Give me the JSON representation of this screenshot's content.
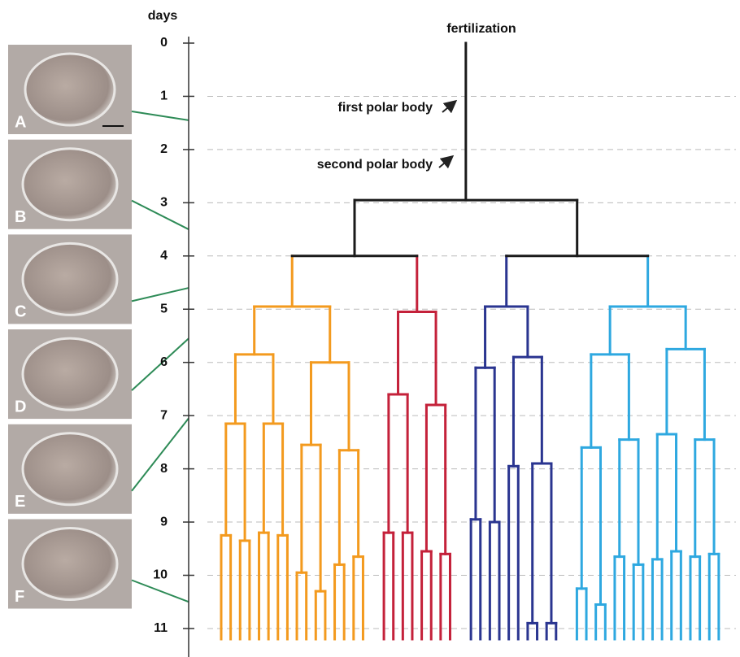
{
  "axis": {
    "label": "days",
    "ticks": [
      0,
      1,
      2,
      3,
      4,
      5,
      6,
      7,
      8,
      9,
      10,
      11
    ],
    "range": [
      0,
      11.5
    ]
  },
  "annotations": {
    "fertilization": "fertilization",
    "first_polar_body": "first polar body",
    "second_polar_body": "second polar body"
  },
  "photos": [
    {
      "label": "A",
      "stage_day": 1.45
    },
    {
      "label": "B",
      "stage_day": 3.5
    },
    {
      "label": "C",
      "stage_day": 4.6
    },
    {
      "label": "D",
      "stage_day": 5.55
    },
    {
      "label": "E",
      "stage_day": 7.05
    },
    {
      "label": "F",
      "stage_day": 10.5
    }
  ],
  "lineage": {
    "fertilization_day": 0,
    "observed_until": 11.2,
    "root": {
      "t": 2.95,
      "color": "#1a1a1a",
      "children": [
        {
          "t": 4,
          "color": "#1a1a1a",
          "children": [
            {
              "t": 4.95,
              "color": "#f39a1e",
              "children": [
                {
                  "t": 5.85,
                  "children": [
                    {
                      "t": 7.15,
                      "children": [
                        {
                          "t": 9.25
                        },
                        {
                          "t": 9.35
                        }
                      ]
                    },
                    {
                      "t": 7.15,
                      "children": [
                        {
                          "t": 9.2
                        },
                        {
                          "t": 9.25
                        }
                      ]
                    }
                  ]
                },
                {
                  "t": 6.0,
                  "children": [
                    {
                      "t": 7.55,
                      "children": [
                        {
                          "t": 9.95
                        },
                        {
                          "t": 10.3
                        }
                      ]
                    },
                    {
                      "t": 7.65,
                      "children": [
                        {
                          "t": 9.8
                        },
                        {
                          "t": 9.65
                        }
                      ]
                    }
                  ]
                }
              ]
            },
            {
              "t": 5.05,
              "color": "#c4213a",
              "children": [
                {
                  "t": 6.6,
                  "children": [
                    {
                      "t": 9.2
                    },
                    {
                      "t": 9.2
                    }
                  ]
                },
                {
                  "t": 6.8,
                  "children": [
                    {
                      "t": 9.55
                    },
                    {
                      "t": 9.6
                    }
                  ]
                }
              ]
            }
          ]
        },
        {
          "t": 4,
          "color": "#1a1a1a",
          "children": [
            {
              "t": 4.95,
              "color": "#2a3590",
              "children": [
                {
                  "t": 6.1,
                  "children": [
                    {
                      "t": 8.95
                    },
                    {
                      "t": 9.0
                    }
                  ]
                },
                {
                  "t": 5.9,
                  "children": [
                    {
                      "t": 7.95
                    },
                    {
                      "t": 7.9,
                      "children": [
                        {
                          "t": 10.9
                        },
                        {
                          "t": 10.9
                        }
                      ]
                    }
                  ]
                }
              ]
            },
            {
              "t": 4.95,
              "color": "#2ea8e0",
              "children": [
                {
                  "t": 5.85,
                  "children": [
                    {
                      "t": 7.6,
                      "children": [
                        {
                          "t": 10.25
                        },
                        {
                          "t": 10.55
                        }
                      ]
                    },
                    {
                      "t": 7.45,
                      "children": [
                        {
                          "t": 9.65
                        },
                        {
                          "t": 9.8
                        }
                      ]
                    }
                  ]
                },
                {
                  "t": 5.75,
                  "children": [
                    {
                      "t": 7.35,
                      "children": [
                        {
                          "t": 9.7
                        },
                        {
                          "t": 9.55
                        }
                      ]
                    },
                    {
                      "t": 7.45,
                      "children": [
                        {
                          "t": 9.65
                        },
                        {
                          "t": 9.6
                        }
                      ]
                    }
                  ]
                }
              ]
            }
          ]
        }
      ]
    }
  }
}
